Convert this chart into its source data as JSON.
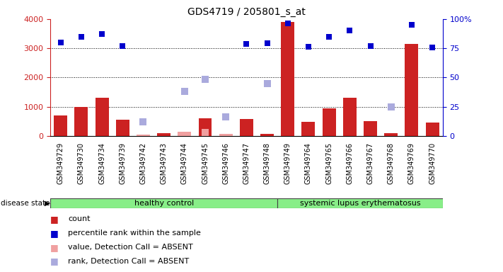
{
  "title": "GDS4719 / 205801_s_at",
  "samples": [
    "GSM349729",
    "GSM349730",
    "GSM349734",
    "GSM349739",
    "GSM349742",
    "GSM349743",
    "GSM349744",
    "GSM349745",
    "GSM349746",
    "GSM349747",
    "GSM349748",
    "GSM349749",
    "GSM349764",
    "GSM349765",
    "GSM349766",
    "GSM349767",
    "GSM349768",
    "GSM349769",
    "GSM349770"
  ],
  "count_values": [
    700,
    1000,
    1300,
    550,
    60,
    100,
    150,
    600,
    80,
    580,
    70,
    3900,
    480,
    950,
    1320,
    500,
    90,
    3150,
    450
  ],
  "count_absent": [
    false,
    false,
    false,
    false,
    true,
    false,
    true,
    false,
    true,
    false,
    false,
    false,
    false,
    false,
    false,
    false,
    false,
    false,
    false
  ],
  "percentile_values": [
    3200,
    3380,
    3500,
    3080,
    null,
    null,
    null,
    null,
    null,
    3160,
    3180,
    3840,
    3060,
    3380,
    3600,
    3080,
    null,
    3800,
    3040
  ],
  "rank_absent_values": [
    null,
    null,
    null,
    null,
    480,
    null,
    1520,
    1940,
    660,
    null,
    1800,
    null,
    null,
    null,
    null,
    null,
    1000,
    null,
    null
  ],
  "value_absent_values": [
    null,
    null,
    null,
    null,
    null,
    null,
    null,
    130,
    null,
    null,
    null,
    null,
    null,
    null,
    null,
    null,
    null,
    null,
    null
  ],
  "healthy_control_count": 11,
  "disease_label": "healthy control",
  "disease2_label": "systemic lupus erythematosus",
  "disease_state_label": "disease state",
  "ylim_left": [
    0,
    4000
  ],
  "ylim_right": [
    0,
    100
  ],
  "yticks_left": [
    0,
    1000,
    2000,
    3000,
    4000
  ],
  "yticks_right": [
    0,
    25,
    50,
    75,
    100
  ],
  "background_color": "#ffffff",
  "bar_color_present": "#cc2222",
  "bar_color_absent": "#f0a0a0",
  "percentile_color": "#0000cc",
  "rank_absent_color": "#aaaadd",
  "value_absent_color": "#f0a0a0",
  "legend_items": [
    {
      "label": "count",
      "color": "#cc2222"
    },
    {
      "label": "percentile rank within the sample",
      "color": "#0000cc"
    },
    {
      "label": "value, Detection Call = ABSENT",
      "color": "#f0a0a0"
    },
    {
      "label": "rank, Detection Call = ABSENT",
      "color": "#aaaadd"
    }
  ]
}
